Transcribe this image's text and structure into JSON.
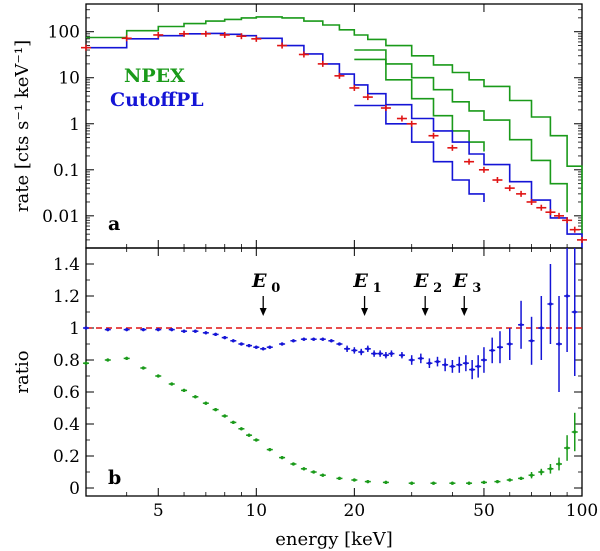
{
  "chart_data": [
    {
      "type": "line",
      "panel_label": "a",
      "ylabel": "rate [cts s⁻¹ keV⁻¹]",
      "xscale": "log",
      "yscale": "log",
      "xlim": [
        3,
        100
      ],
      "ylim": [
        0.002,
        400
      ],
      "yticks": [
        100,
        10,
        1,
        0.1,
        0.01
      ],
      "ytick_labels": [
        "100",
        "10",
        "1",
        "0.1",
        "0.01"
      ],
      "legend": [
        {
          "label": "NPEX",
          "color": "#1a9a1a"
        },
        {
          "label": "CutoffPL",
          "color": "#1414d6"
        }
      ],
      "series": [
        {
          "name": "NPEX model (unfolded)",
          "color": "#1a9a1a",
          "style": "step",
          "x": [
            3,
            4,
            5,
            6,
            7,
            8,
            9,
            10,
            11,
            12,
            14,
            16,
            18,
            20,
            22,
            25,
            30,
            35,
            40,
            45,
            50,
            60,
            70,
            80,
            90,
            100
          ],
          "y": [
            75,
            105,
            130,
            150,
            170,
            185,
            200,
            210,
            210,
            200,
            170,
            140,
            110,
            85,
            68,
            50,
            30,
            19,
            13,
            9,
            6.5,
            3.2,
            1.4,
            0.55,
            0.12,
            0.004
          ]
        },
        {
          "name": "NPEX model branch 2",
          "color": "#1a9a1a",
          "style": "step",
          "x": [
            20,
            25,
            30,
            35,
            40,
            45,
            50,
            60,
            70,
            80,
            90
          ],
          "y": [
            40,
            20,
            10,
            5.5,
            3,
            1.9,
            1.2,
            0.45,
            0.16,
            0.05,
            0.012
          ]
        },
        {
          "name": "NPEX model branch 3",
          "color": "#1a9a1a",
          "style": "step",
          "x": [
            20,
            25,
            30,
            35,
            40,
            45,
            50
          ],
          "y": [
            25,
            9,
            3.5,
            1.5,
            0.7,
            0.4,
            0.25
          ]
        },
        {
          "name": "CutoffPL model (unfolded)",
          "color": "#1414d6",
          "style": "step",
          "x": [
            3,
            4,
            5,
            6,
            7,
            8,
            9,
            10,
            12,
            14,
            16,
            18,
            20,
            22,
            25,
            30,
            35,
            40,
            45,
            50,
            60,
            70,
            80,
            90,
            100
          ],
          "y": [
            45,
            70,
            82,
            90,
            92,
            88,
            82,
            72,
            50,
            33,
            20,
            12,
            7,
            4.5,
            2.6,
            1.3,
            0.7,
            0.4,
            0.22,
            0.13,
            0.055,
            0.022,
            0.009,
            0.004,
            0.002
          ]
        },
        {
          "name": "CutoffPL model branch 2",
          "color": "#1414d6",
          "style": "step",
          "x": [
            20,
            25,
            30,
            35,
            40,
            45,
            50
          ],
          "y": [
            2.5,
            1,
            0.4,
            0.15,
            0.06,
            0.03,
            0.02
          ]
        },
        {
          "name": "Data",
          "color": "#e01414",
          "style": "points",
          "x": [
            3,
            4,
            5,
            6,
            7,
            8,
            9,
            10,
            12,
            14,
            16,
            18,
            20,
            22,
            25,
            28,
            30,
            35,
            40,
            45,
            50,
            55,
            60,
            65,
            70,
            75,
            80,
            85,
            90,
            95,
            100
          ],
          "y": [
            45,
            72,
            85,
            90,
            90,
            85,
            80,
            70,
            50,
            32,
            20,
            11,
            6,
            3.8,
            2.2,
            1.3,
            1,
            0.55,
            0.3,
            0.15,
            0.1,
            0.06,
            0.04,
            0.03,
            0.02,
            0.015,
            0.012,
            0.01,
            0.008,
            0.005,
            0.003
          ]
        }
      ]
    },
    {
      "type": "scatter",
      "panel_label": "b",
      "xlabel": "energy [keV]",
      "ylabel": "ratio",
      "xscale": "log",
      "xlim": [
        3,
        100
      ],
      "ylim": [
        -0.05,
        1.5
      ],
      "xticks": [
        5,
        10,
        20,
        50,
        100
      ],
      "xtick_labels": [
        "5",
        "10",
        "20",
        "50",
        "100"
      ],
      "yticks": [
        0,
        0.2,
        0.4,
        0.6,
        0.8,
        1,
        1.2,
        1.4
      ],
      "ytick_labels": [
        "0",
        "0.2",
        "0.4",
        "0.6",
        "0.8",
        "1",
        "1.2",
        "1.4"
      ],
      "reference_line": {
        "y": 1,
        "color": "#e01414",
        "style": "dashed"
      },
      "annotations": [
        {
          "label": "E",
          "subscript": "0",
          "x": 10.5
        },
        {
          "label": "E",
          "subscript": "1",
          "x": 21.5
        },
        {
          "label": "E",
          "subscript": "2",
          "x": 33
        },
        {
          "label": "E",
          "subscript": "3",
          "x": 43.5
        }
      ],
      "series": [
        {
          "name": "CutoffPL ratio",
          "color": "#1414d6",
          "x": [
            3,
            3.5,
            4,
            4.5,
            5,
            5.5,
            6,
            6.5,
            7,
            7.5,
            8,
            8.5,
            9,
            9.5,
            10,
            10.5,
            11,
            12,
            13,
            14,
            15,
            16,
            17,
            18,
            19,
            20,
            21,
            22,
            23,
            24,
            25,
            26,
            28,
            30,
            32,
            34,
            36,
            38,
            40,
            42,
            44,
            46,
            48,
            50,
            53,
            56,
            60,
            65,
            70,
            75,
            80,
            85,
            90,
            95
          ],
          "y": [
            1.0,
            0.99,
            0.99,
            0.99,
            0.99,
            0.99,
            0.98,
            0.98,
            0.97,
            0.96,
            0.94,
            0.92,
            0.9,
            0.89,
            0.88,
            0.87,
            0.88,
            0.9,
            0.92,
            0.93,
            0.93,
            0.93,
            0.92,
            0.9,
            0.87,
            0.86,
            0.85,
            0.87,
            0.84,
            0.84,
            0.83,
            0.84,
            0.83,
            0.8,
            0.81,
            0.78,
            0.79,
            0.77,
            0.76,
            0.77,
            0.78,
            0.74,
            0.76,
            0.8,
            0.86,
            0.88,
            0.9,
            1.02,
            0.92,
            1.0,
            1.15,
            0.9,
            1.2,
            1.1
          ],
          "yerr": [
            0.01,
            0.01,
            0.01,
            0.01,
            0.01,
            0.01,
            0.01,
            0.01,
            0.01,
            0.01,
            0.01,
            0.01,
            0.01,
            0.01,
            0.01,
            0.01,
            0.01,
            0.01,
            0.01,
            0.01,
            0.01,
            0.01,
            0.01,
            0.01,
            0.02,
            0.02,
            0.02,
            0.02,
            0.02,
            0.02,
            0.02,
            0.02,
            0.02,
            0.03,
            0.03,
            0.03,
            0.03,
            0.04,
            0.04,
            0.05,
            0.05,
            0.06,
            0.07,
            0.08,
            0.08,
            0.1,
            0.1,
            0.15,
            0.15,
            0.2,
            0.25,
            0.3,
            0.35,
            0.4
          ]
        },
        {
          "name": "NPEX ratio",
          "color": "#1a9a1a",
          "x": [
            3,
            3.5,
            4,
            4.5,
            5,
            5.5,
            6,
            6.5,
            7,
            7.5,
            8,
            8.5,
            9,
            9.5,
            10,
            11,
            12,
            13,
            14,
            15,
            16,
            18,
            20,
            22,
            25,
            30,
            35,
            40,
            45,
            50,
            55,
            60,
            65,
            70,
            75,
            80,
            85,
            90,
            95
          ],
          "y": [
            0.78,
            0.8,
            0.81,
            0.75,
            0.7,
            0.65,
            0.61,
            0.57,
            0.53,
            0.49,
            0.45,
            0.41,
            0.37,
            0.33,
            0.3,
            0.24,
            0.19,
            0.15,
            0.12,
            0.1,
            0.08,
            0.06,
            0.05,
            0.04,
            0.035,
            0.03,
            0.03,
            0.03,
            0.03,
            0.035,
            0.04,
            0.05,
            0.06,
            0.08,
            0.1,
            0.12,
            0.15,
            0.25,
            0.35
          ],
          "yerr": [
            0.01,
            0.01,
            0.01,
            0.01,
            0.01,
            0.01,
            0.01,
            0.01,
            0.01,
            0.01,
            0.01,
            0.01,
            0.01,
            0.01,
            0.01,
            0.01,
            0.01,
            0.01,
            0.01,
            0.01,
            0.01,
            0.01,
            0.01,
            0.01,
            0.01,
            0.01,
            0.01,
            0.01,
            0.01,
            0.01,
            0.01,
            0.01,
            0.01,
            0.02,
            0.02,
            0.03,
            0.04,
            0.08,
            0.12
          ]
        }
      ]
    }
  ]
}
